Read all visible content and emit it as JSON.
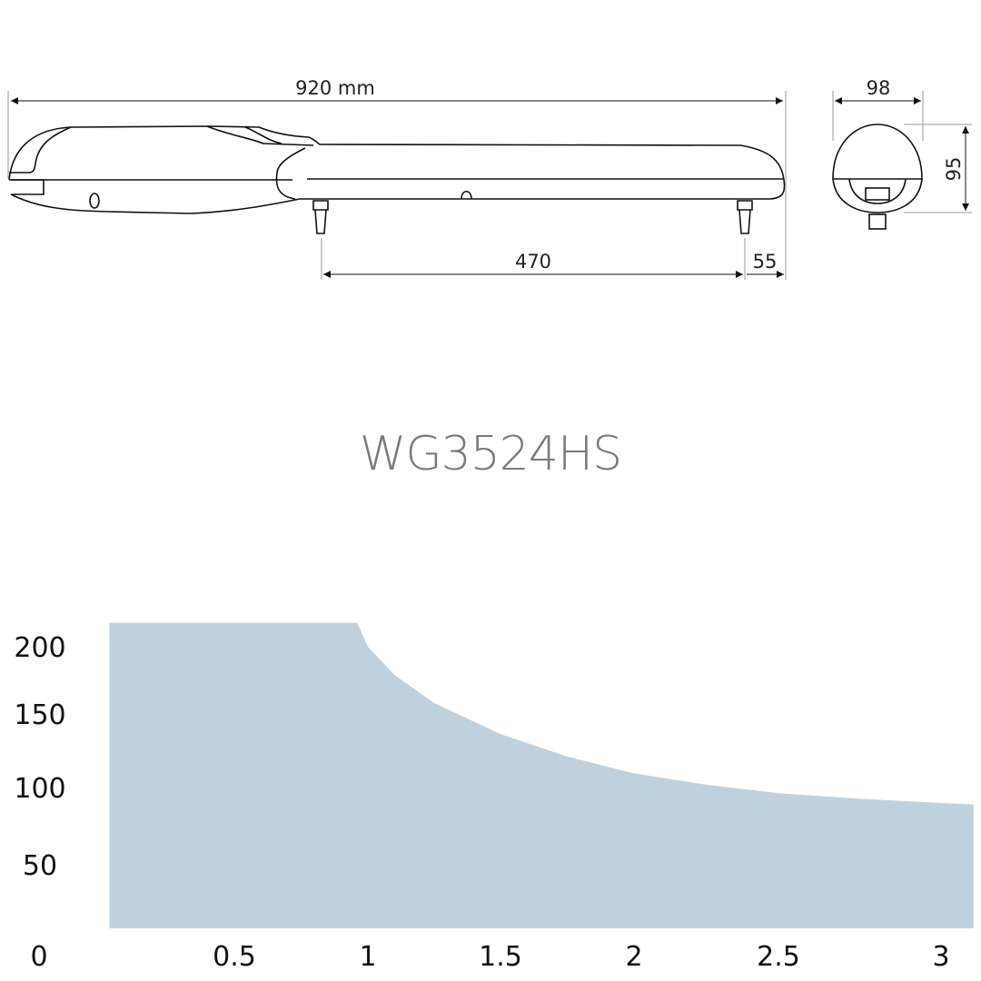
{
  "drawing": {
    "dimensions": {
      "overall_length": "920 mm",
      "width": "98",
      "height": "95",
      "mount_spacing": "470",
      "end_offset": "55"
    },
    "line_color": "#111111"
  },
  "title": "WG3524HS",
  "chart_data": {
    "type": "area",
    "title": "",
    "xlabel": "",
    "ylabel": "",
    "x_ticks": [
      "0",
      "0.5",
      "1",
      "1.5",
      "2",
      "2.5",
      "3"
    ],
    "y_ticks": [
      "200",
      "150",
      "100",
      "50"
    ],
    "origin_label": "0",
    "ylim": [
      0,
      217
    ],
    "xlim": [
      0.18,
      3.1
    ],
    "grid": false,
    "fill_color": "#bfd1dc",
    "series": [
      {
        "x": [
          0.18,
          0.96,
          1.0,
          1.1,
          1.25,
          1.5,
          1.75,
          2.0,
          2.25,
          2.5,
          2.75,
          3.0,
          3.1
        ],
        "y": [
          217,
          217,
          200,
          180,
          160,
          138,
          122,
          110,
          102,
          96,
          92,
          89,
          88
        ]
      }
    ]
  }
}
